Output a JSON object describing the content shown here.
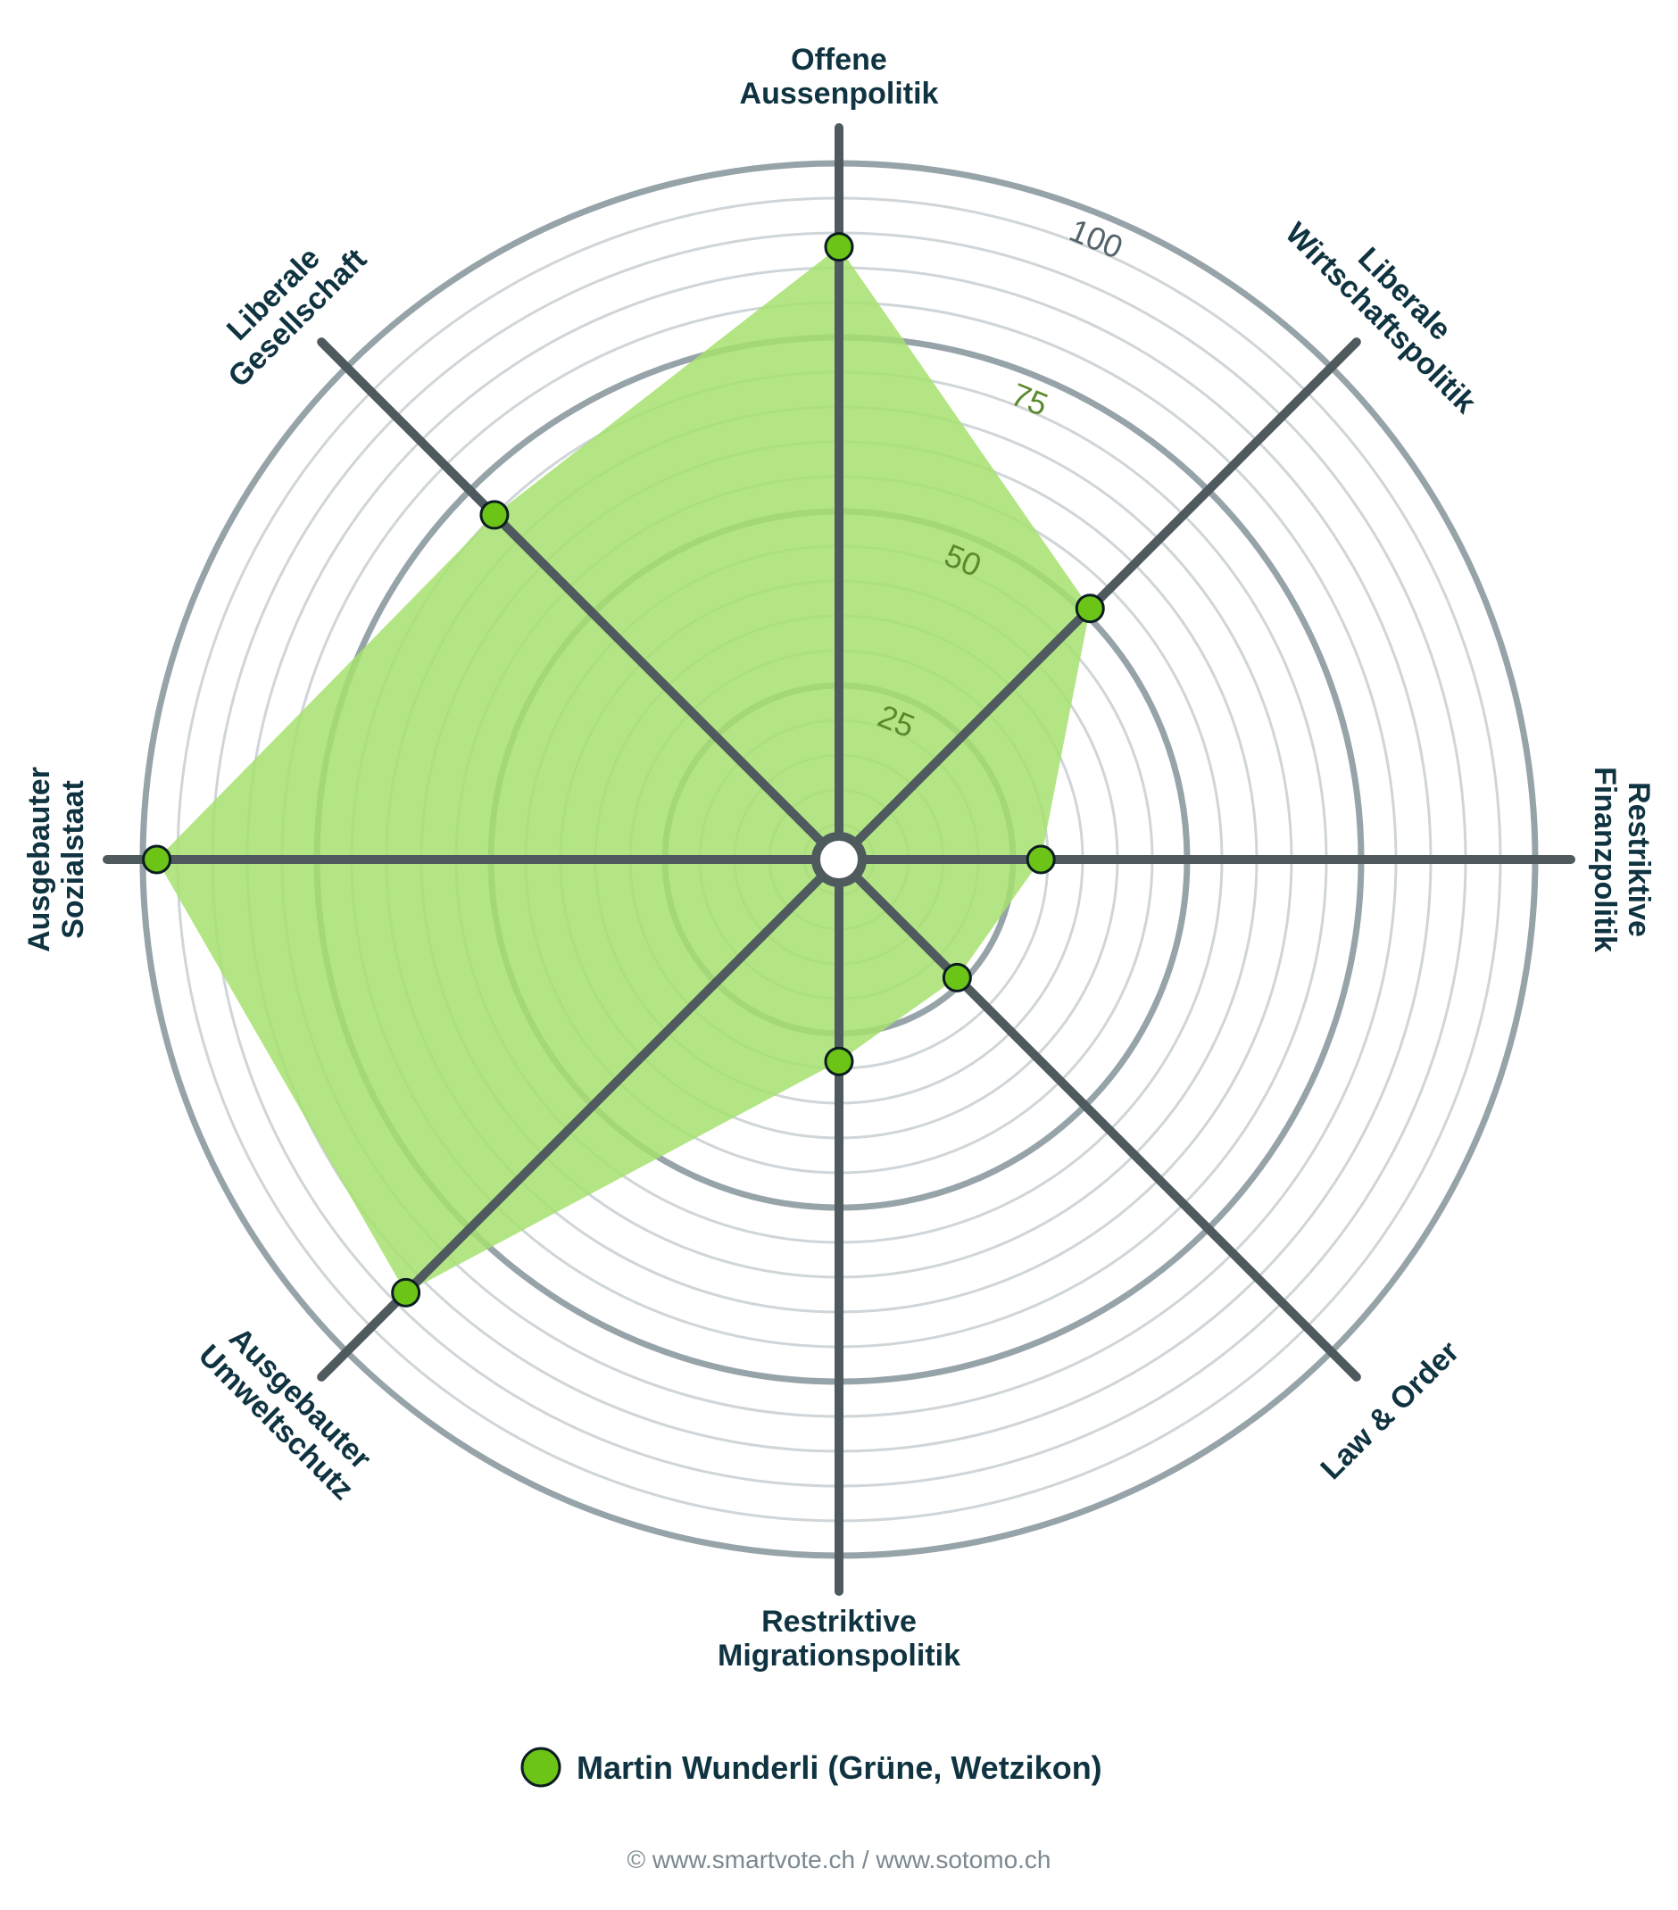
{
  "chart_data": {
    "type": "radar",
    "axes": [
      "Offene Aussenpolitik",
      "Liberale Wirtschaftspolitik",
      "Restriktive Finanzpolitik",
      "Law & Order",
      "Restriktive Migrationspolitik",
      "Ausgebauter Umweltschutz",
      "Ausgebauter Sozialstaat",
      "Liberale Gesellschaft"
    ],
    "axis_label_lines": [
      [
        "Offene",
        "Aussenpolitik"
      ],
      [
        "Liberale",
        "Wirtschaftspolitik"
      ],
      [
        "Restriktive",
        "Finanzpolitik"
      ],
      [
        "Law & Order"
      ],
      [
        "Restriktive",
        "Migrationspolitik"
      ],
      [
        "Ausgebauter",
        "Umweltschutz"
      ],
      [
        "Ausgebauter",
        "Sozialstaat"
      ],
      [
        "Liberale",
        "Gesellschaft"
      ]
    ],
    "scale": {
      "min": 0,
      "max": 100,
      "ticks": [
        "25",
        "50",
        "75",
        "100"
      ]
    },
    "series": [
      {
        "name": "Martin Wunderli (Grüne, Wetzikon)",
        "values": [
          88,
          51,
          29,
          24,
          29,
          88,
          98,
          70
        ],
        "color": "#6cc416",
        "fill": "#a6e06e"
      }
    ]
  },
  "legend": {
    "label": "Martin Wunderli (Grüne, Wetzikon)"
  },
  "footer": {
    "text": "© www.smartvote.ch / www.sotomo.ch"
  },
  "colors": {
    "major_ring": "#96a3a9",
    "minor_ring": "#cfd5d8",
    "spoke": "#4f5a5e",
    "text": "#0f3340",
    "marker": "#6cc416",
    "area": "#a6e06e"
  }
}
